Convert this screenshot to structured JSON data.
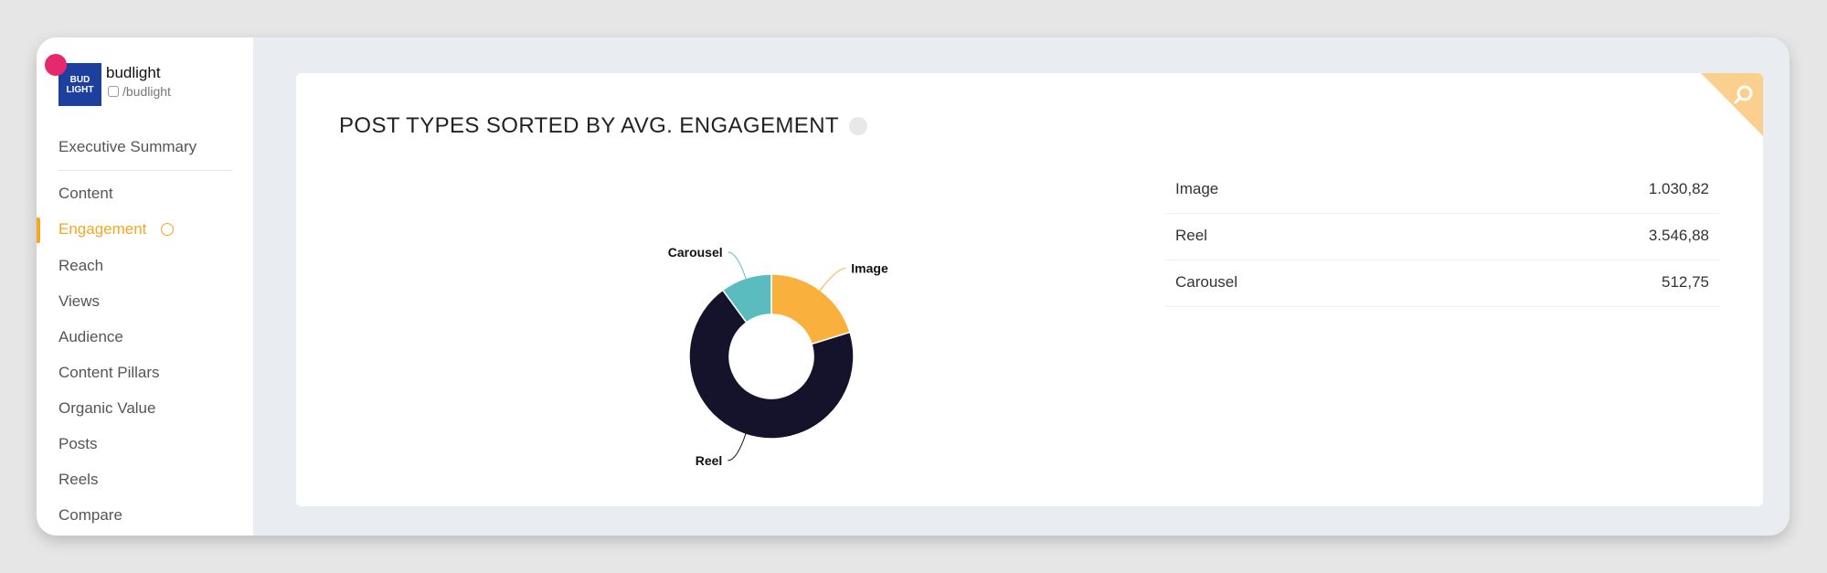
{
  "sidebar": {
    "profile": {
      "name": "budlight",
      "handle": "/budlight",
      "logo_text": "BUD LIGHT"
    },
    "nav": [
      "Executive Summary",
      "Content",
      "Engagement",
      "Reach",
      "Views",
      "Audience",
      "Content Pillars",
      "Organic Value",
      "Posts",
      "Reels",
      "Compare"
    ]
  },
  "chart_data": {
    "type": "pie",
    "donut": true,
    "title": "POST TYPES SORTED BY AVG. ENGAGEMENT",
    "categories": [
      "Image",
      "Reel",
      "Carousel"
    ],
    "values": [
      1030.82,
      3546.88,
      512.75
    ],
    "value_labels": [
      "1.030,82",
      "3.546,88",
      "512,75"
    ],
    "colors": [
      "#f9b03c",
      "#14132b",
      "#5bbcc0"
    ]
  }
}
